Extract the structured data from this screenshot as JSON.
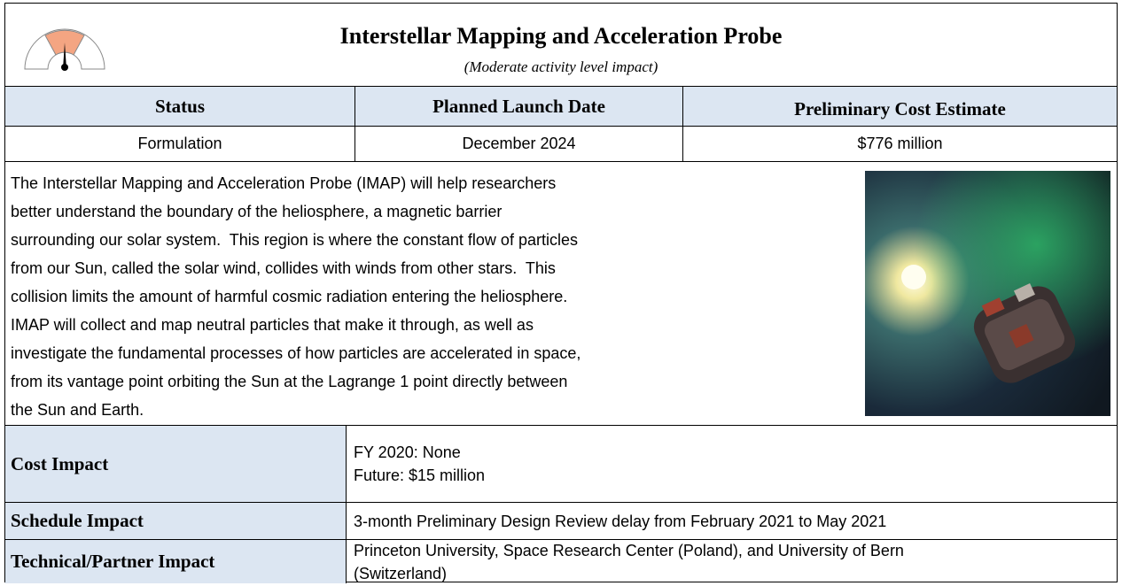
{
  "header": {
    "title": "Interstellar Mapping and Acceleration Probe",
    "subtitle": "(Moderate activity level impact)"
  },
  "summary": {
    "columns": [
      "Status",
      "Planned Launch Date",
      "Preliminary Cost Estimate"
    ],
    "values": [
      "Formulation",
      "December 2024",
      "$776 million"
    ]
  },
  "description": {
    "lines": [
      "The Interstellar Mapping and Acceleration Probe (IMAP) will help researchers",
      "better understand the boundary of the heliosphere, a magnetic barrier",
      "surrounding our solar system.  This region is where the constant flow of particles",
      "from our Sun, called the solar wind, collides with winds from other stars.  This",
      "collision limits the amount of harmful cosmic radiation entering the heliosphere.",
      "IMAP will collect and map neutral particles that make it through, as well as",
      "investigate the fundamental processes of how particles are accelerated in space,",
      "from its vantage point orbiting the Sun at the Lagrange 1 point directly between",
      "the Sun and Earth."
    ]
  },
  "impacts": [
    {
      "label": "Cost Impact",
      "lines": [
        "FY 2020:  None",
        "Future:  $15 million"
      ]
    },
    {
      "label": "Schedule Impact",
      "lines": [
        "3-month Preliminary Design Review delay from February 2021 to May 2021"
      ]
    },
    {
      "label": "Technical/Partner Impact",
      "lines": [
        "Princeton University, Space Research Center (Poland), and University of Bern",
        "(Switzerland)"
      ]
    }
  ]
}
